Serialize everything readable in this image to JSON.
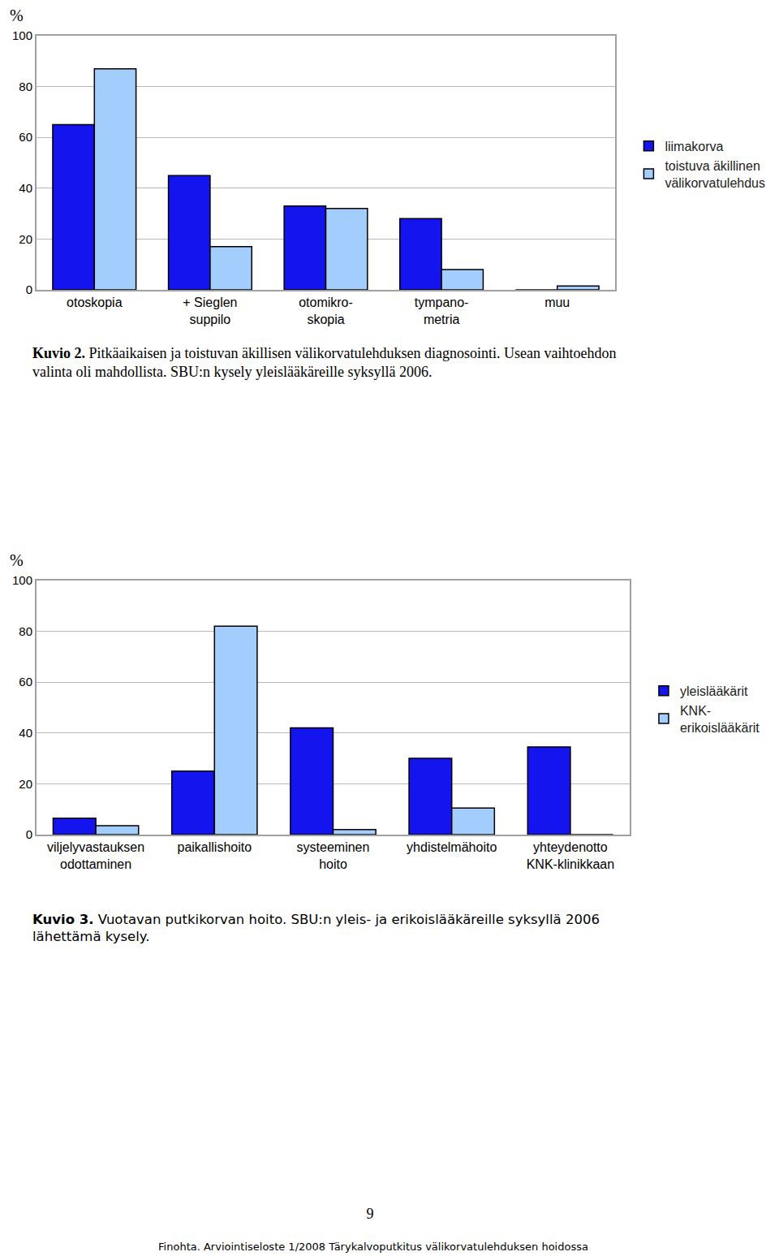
{
  "chart_data": [
    {
      "type": "bar",
      "figure_label": "Kuvio 2.",
      "title": "Pitkäaikaisen ja toistuvan äkillisen välikorvatulehduksen diagnosointi. Usean vaihtoehdon valinta oli mahdollista. SBU:n kysely yleislääkäreille syksyllä 2006.",
      "ylabel": "%",
      "categories": [
        "otoskopia",
        "+ Sieglen\nsuppilo",
        "otomikro-\nskopia",
        "tympano-\nmetria",
        "muu"
      ],
      "series": [
        {
          "name": "liimakorva",
          "color": "#1414ee",
          "values": [
            65,
            45,
            33,
            28,
            0
          ]
        },
        {
          "name": "toistuva äkillinen\nvälikorvatulehdus",
          "color": "#a3cdfd",
          "values": [
            87,
            17,
            32,
            8,
            1.5
          ]
        }
      ],
      "ylim": [
        0,
        100
      ],
      "yticks": [
        0,
        20,
        40,
        60,
        80,
        100
      ],
      "grid": true,
      "legend": "right"
    },
    {
      "type": "bar",
      "figure_label": "Kuvio 3.",
      "title": "Vuotavan putkikorvan hoito. SBU:n yleis- ja erikoislääkäreille syksyllä 2006 lähettämä kysely.",
      "ylabel": "%",
      "categories": [
        "viljelyvastauksen\nodottaminen",
        "paikallishoito",
        "systeeminen\nhoito",
        "yhdistelmähoito",
        "yhteydenotto\nKNK-klinikkaan"
      ],
      "series": [
        {
          "name": "yleislääkärit",
          "color": "#1414ee",
          "values": [
            6.5,
            25,
            42,
            30,
            34.5
          ]
        },
        {
          "name": "KNK-\nerikoislääkärit",
          "color": "#a3cdfd",
          "values": [
            3.5,
            82,
            2,
            10.5,
            0
          ]
        }
      ],
      "ylim": [
        0,
        100
      ],
      "yticks": [
        0,
        20,
        40,
        60,
        80,
        100
      ],
      "grid": true,
      "legend": "right"
    }
  ],
  "page_number": 9,
  "footer": "Finohta. Arviointiseloste 1/2008 Tärykalvoputkitus välikorvatulehduksen hoidossa"
}
